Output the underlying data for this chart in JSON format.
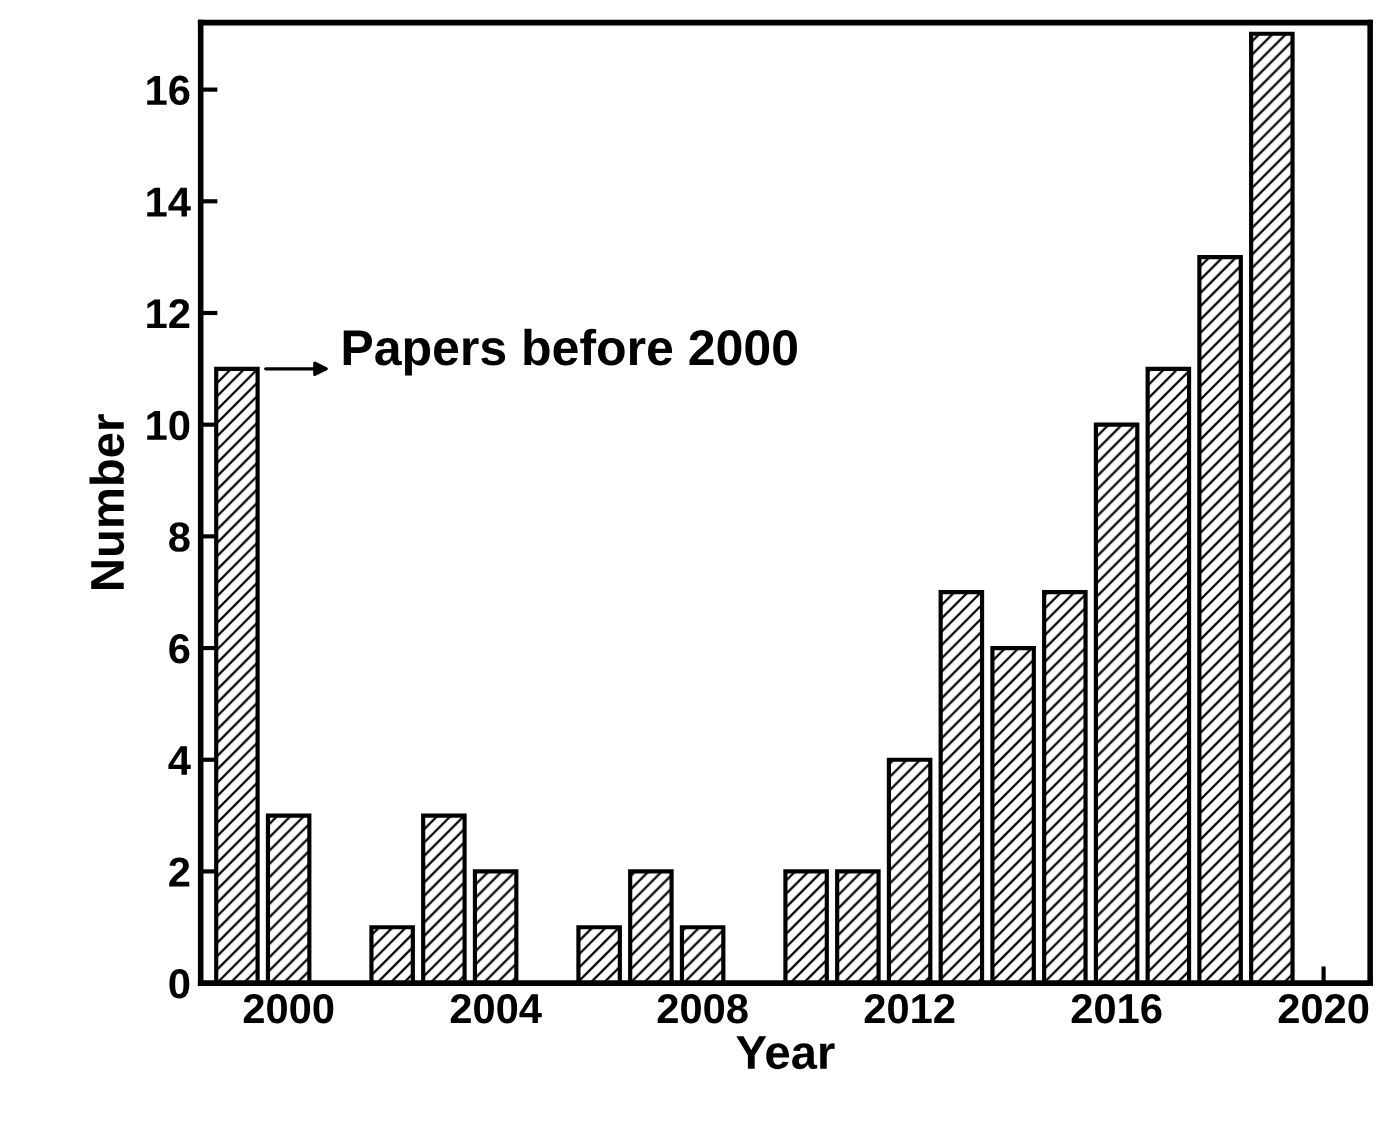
{
  "chart_data": {
    "type": "bar",
    "xlabel": "Year",
    "ylabel": "Number",
    "x": [
      1999,
      2000,
      2001,
      2002,
      2003,
      2004,
      2005,
      2006,
      2007,
      2008,
      2009,
      2010,
      2011,
      2012,
      2013,
      2014,
      2015,
      2016,
      2017,
      2018,
      2019
    ],
    "series": [
      {
        "color": "#000000",
        "values": [
          11,
          3,
          0,
          1,
          3,
          2,
          0,
          1,
          2,
          1,
          0,
          2,
          2,
          4,
          7,
          6,
          7,
          10,
          11,
          13,
          17
        ]
      }
    ],
    "xlim": [
      1998.3,
      2020.9
    ],
    "xticks": [
      2000,
      2004,
      2008,
      2012,
      2016,
      2020
    ],
    "ylim": [
      0,
      17.2
    ],
    "yticks": [
      0,
      2,
      4,
      6,
      8,
      10,
      12,
      14,
      16
    ],
    "annotations": [
      {
        "text": "Papers before 2000",
        "x": 1999,
        "y": 11
      }
    ],
    "grid": false,
    "legend": false
  }
}
